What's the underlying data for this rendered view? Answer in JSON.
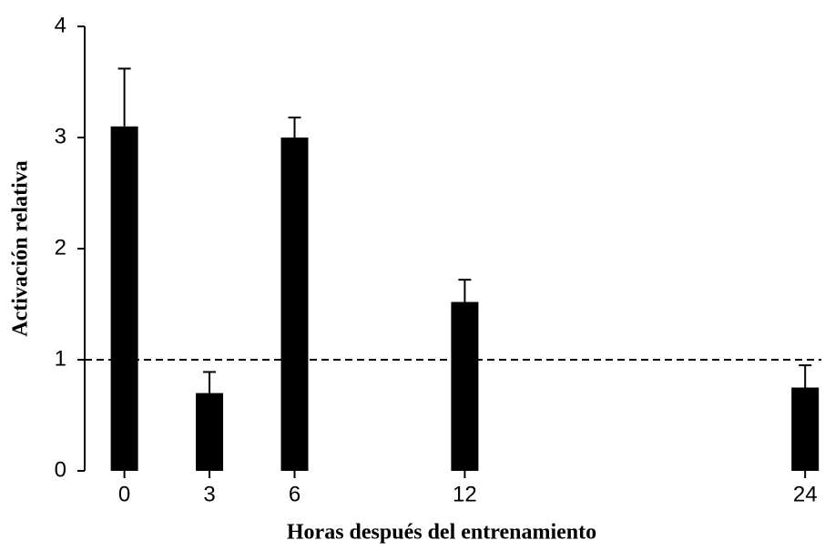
{
  "chart_data": {
    "type": "bar",
    "x": [
      0,
      3,
      6,
      12,
      24
    ],
    "values": [
      3.1,
      0.7,
      3.0,
      1.52,
      0.75
    ],
    "errors": [
      0.52,
      0.19,
      0.18,
      0.2,
      0.2
    ],
    "color": "#000000",
    "xlabel": "Horas después del entrenamiento",
    "ylabel": "Activación relativa",
    "xlim": [
      -1.4,
      24.7
    ],
    "xticks": [
      0,
      3,
      6,
      12,
      24
    ],
    "ylim": [
      0,
      4
    ],
    "yticks": [
      0,
      1,
      2,
      3,
      4
    ],
    "reference_line": 1
  }
}
